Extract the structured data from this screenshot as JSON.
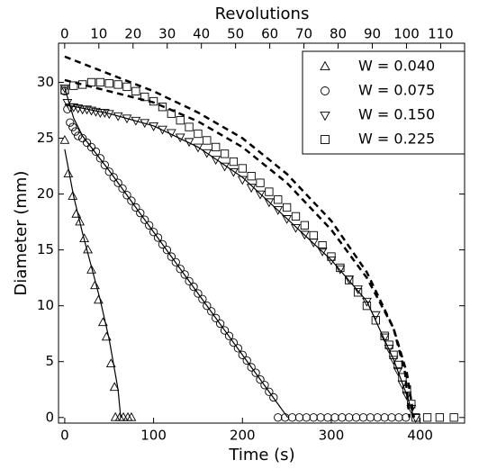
{
  "chart_data": {
    "type": "scatter",
    "xlabel": "Time (s)",
    "ylabel": "Diameter (mm)",
    "x2label": "Revolutions",
    "xlim": [
      -7,
      450
    ],
    "ylim": [
      -0.5,
      33.5
    ],
    "x2lim": [
      -1.8,
      117
    ],
    "xticks": [
      0,
      100,
      200,
      300,
      400
    ],
    "yticks": [
      0,
      5,
      10,
      15,
      20,
      25,
      30
    ],
    "x2ticks": [
      0,
      10,
      20,
      30,
      40,
      50,
      60,
      70,
      80,
      90,
      100,
      110
    ],
    "legend": "upper right",
    "series": [
      {
        "name": "W = 0.040",
        "marker": "triangle-up",
        "color": "#000000",
        "x": [
          0,
          4,
          9,
          13,
          17,
          22,
          26,
          30,
          34,
          38,
          43,
          47,
          52,
          56,
          57,
          62,
          66,
          71,
          75
        ],
        "values": [
          24.8,
          21.8,
          19.8,
          18.2,
          17.5,
          16,
          15,
          13.2,
          11.8,
          10.5,
          8.5,
          7.2,
          4.8,
          2.7,
          0,
          0,
          0,
          0,
          0
        ]
      },
      {
        "name": "W = 0.075",
        "marker": "circle",
        "color": "#000000",
        "x": [
          0,
          3,
          6,
          9,
          12,
          15,
          20,
          25,
          30,
          35,
          40,
          45,
          50,
          55,
          60,
          65,
          70,
          75,
          80,
          85,
          90,
          95,
          100,
          105,
          110,
          115,
          120,
          125,
          130,
          135,
          140,
          145,
          150,
          155,
          160,
          165,
          170,
          175,
          180,
          185,
          190,
          195,
          200,
          205,
          210,
          215,
          220,
          225,
          230,
          235,
          240,
          248,
          256,
          264,
          272,
          280,
          288,
          296,
          304,
          312,
          320,
          328,
          336,
          344,
          352,
          360,
          368,
          376,
          384
        ],
        "values": [
          29.2,
          27.6,
          26.4,
          26,
          25.6,
          25.2,
          25,
          24.6,
          24.2,
          23.8,
          23.2,
          22.6,
          22,
          21.5,
          21,
          20.5,
          19.9,
          19.4,
          18.8,
          18.3,
          17.7,
          17.2,
          16.6,
          16.1,
          15.5,
          15,
          14.4,
          13.9,
          13.3,
          12.8,
          12.2,
          11.7,
          11.1,
          10.6,
          10,
          9.5,
          8.9,
          8.4,
          7.8,
          7.3,
          6.7,
          6.2,
          5.6,
          5.1,
          4.5,
          4,
          3.4,
          2.9,
          2.3,
          1.8,
          0,
          0,
          0,
          0,
          0,
          0,
          0,
          0,
          0,
          0,
          0,
          0,
          0,
          0,
          0,
          0,
          0,
          0,
          0
        ]
      },
      {
        "name": "W = 0.150",
        "marker": "triangle-down",
        "color": "#000000",
        "x": [
          0,
          3,
          6,
          10,
          15,
          20,
          25,
          30,
          35,
          40,
          45,
          50,
          60,
          70,
          80,
          90,
          100,
          110,
          120,
          130,
          140,
          150,
          160,
          170,
          180,
          190,
          200,
          210,
          220,
          230,
          240,
          250,
          260,
          270,
          280,
          290,
          300,
          310,
          320,
          330,
          340,
          350,
          360,
          365,
          370,
          375,
          380,
          385,
          390,
          395
        ],
        "values": [
          29.5,
          28.2,
          27.8,
          27.8,
          27.7,
          27.6,
          27.6,
          27.5,
          27.4,
          27.3,
          27.3,
          27.2,
          27,
          26.8,
          26.6,
          26.4,
          26.1,
          25.8,
          25.5,
          25.1,
          24.7,
          24.2,
          23.7,
          23.1,
          22.5,
          22,
          21.3,
          20.6,
          20,
          19.3,
          18.6,
          17.8,
          17,
          16.4,
          15.7,
          14.9,
          14.1,
          13.3,
          12.4,
          11.5,
          10.4,
          9.2,
          7.2,
          6.2,
          5.2,
          4.2,
          3,
          2,
          0.8,
          0
        ]
      },
      {
        "name": "W = 0.225",
        "marker": "square",
        "color": "#000000",
        "x": [
          0,
          10,
          20,
          30,
          40,
          50,
          60,
          70,
          80,
          90,
          100,
          110,
          120,
          130,
          140,
          150,
          160,
          170,
          180,
          190,
          200,
          210,
          220,
          230,
          240,
          250,
          260,
          270,
          280,
          290,
          300,
          310,
          320,
          330,
          340,
          350,
          360,
          365,
          370,
          375,
          380,
          385,
          390,
          395,
          408,
          422,
          438
        ],
        "values": [
          29.3,
          29.7,
          29.8,
          30,
          30,
          29.9,
          29.8,
          29.6,
          29.2,
          28.7,
          28.3,
          27.8,
          27.2,
          26.6,
          26,
          25.4,
          24.8,
          24.2,
          23.6,
          22.9,
          22.3,
          21.6,
          21,
          20.2,
          19.5,
          18.8,
          18,
          17.2,
          16.3,
          15.4,
          14.4,
          13.4,
          12.3,
          11.2,
          10,
          8.7,
          7.3,
          6.5,
          5.6,
          4.7,
          3.6,
          2.5,
          1.2,
          0,
          0,
          0,
          0
        ]
      }
    ],
    "fits": [
      {
        "style": "solid",
        "color": "#000000",
        "x": [
          0,
          10,
          20,
          30,
          40,
          50,
          60,
          63
        ],
        "values": [
          24,
          19.8,
          16.5,
          13.5,
          10.5,
          7,
          2.5,
          0
        ]
      },
      {
        "style": "solid",
        "color": "#000000",
        "x": [
          0,
          10,
          20,
          50,
          100,
          150,
          200,
          240,
          251
        ],
        "values": [
          29.5,
          26.8,
          25.2,
          22.1,
          16.6,
          11.1,
          5.6,
          1.2,
          0
        ]
      },
      {
        "style": "solid",
        "color": "#000000",
        "x": [
          0,
          50,
          100,
          150,
          200,
          250,
          300,
          340,
          370,
          385,
          393
        ],
        "values": [
          28,
          27.2,
          26.1,
          24.2,
          21.5,
          17.8,
          14.1,
          10.4,
          5.2,
          2,
          0
        ]
      },
      {
        "style": "dashed",
        "color": "#000000",
        "x": [
          0,
          100,
          150,
          200,
          250,
          300,
          340,
          370,
          385,
          393
        ],
        "values": [
          30.2,
          28.2,
          26.5,
          24.2,
          21,
          16.8,
          12.5,
          8,
          4,
          0
        ]
      },
      {
        "style": "dashed",
        "color": "#000000",
        "x": [
          0,
          100,
          150,
          200,
          250,
          300,
          340,
          370,
          383,
          388
        ],
        "values": [
          32.3,
          29.2,
          27.3,
          25,
          21.8,
          17.6,
          13,
          8,
          4,
          0
        ]
      }
    ]
  }
}
